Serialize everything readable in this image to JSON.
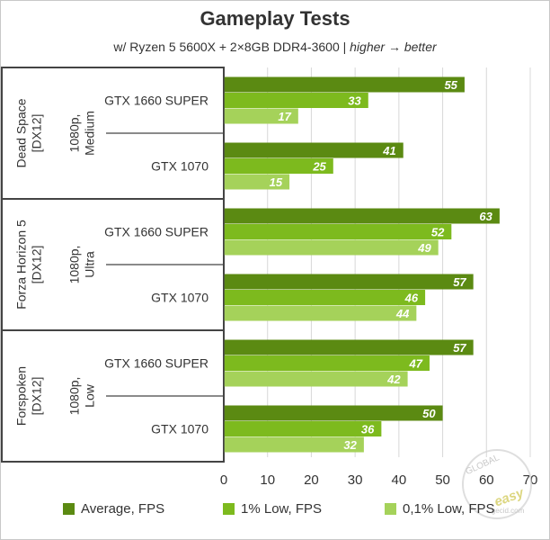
{
  "chart_data": {
    "type": "bar",
    "orientation": "horizontal",
    "title": "Gameplay Tests",
    "subtitle": {
      "setup": "w/ Ryzen 5 5600X + 2×8GB DDR4-3600 | ",
      "note": "higher → better"
    },
    "xlim": [
      0,
      70
    ],
    "ticks": [
      0,
      10,
      20,
      30,
      40,
      50,
      60,
      70
    ],
    "grid": true,
    "legend_position": "bottom",
    "series": [
      {
        "name": "Average, FPS",
        "color": "#5b8a12"
      },
      {
        "name": "1% Low, FPS",
        "color": "#7dba1e"
      },
      {
        "name": "0,1% Low, FPS",
        "color": "#a5d25a"
      }
    ],
    "groups": [
      {
        "game": "Dead Space\n[DX12]",
        "settings": "1080p,\nMedium",
        "cards": [
          {
            "label": "GTX 1660 SUPER",
            "values": [
              55,
              33,
              17
            ]
          },
          {
            "label": "GTX 1070",
            "values": [
              41,
              25,
              15
            ]
          }
        ]
      },
      {
        "game": "Forza Horizon 5\n[DX12]",
        "settings": "1080p,\nUltra",
        "cards": [
          {
            "label": "GTX 1660 SUPER",
            "values": [
              63,
              52,
              49
            ]
          },
          {
            "label": "GTX 1070",
            "values": [
              57,
              46,
              44
            ]
          }
        ]
      },
      {
        "game": "Forspoken\n[DX12]",
        "settings": "1080p,\nLow",
        "cards": [
          {
            "label": "GTX 1660 SUPER",
            "values": [
              57,
              47,
              42
            ]
          },
          {
            "label": "GTX 1070",
            "values": [
              50,
              36,
              32
            ]
          }
        ]
      }
    ]
  },
  "watermark": {
    "line1": "GLOBAL",
    "line2": "easy",
    "line3": "gecid.com"
  }
}
